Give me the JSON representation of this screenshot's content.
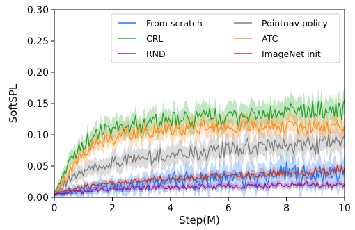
{
  "chart_data": {
    "type": "line",
    "xlabel": "Step(M)",
    "ylabel": "SoftSPL",
    "xlim": [
      0,
      10
    ],
    "ylim": [
      0,
      0.3
    ],
    "x_ticks": [
      0,
      2,
      4,
      6,
      8,
      10
    ],
    "x_tick_labels": [
      "0",
      "2",
      "4",
      "6",
      "8",
      "10"
    ],
    "y_ticks": [
      0,
      0.05,
      0.1,
      0.15,
      0.2,
      0.25,
      0.3
    ],
    "y_tick_labels": [
      "0.00",
      "0.05",
      "0.10",
      "0.15",
      "0.20",
      "0.25",
      "0.30"
    ],
    "grid": false,
    "legend_position": "top-right",
    "legend_columns": 2,
    "x": [
      0,
      0.5,
      1,
      1.5,
      2,
      2.5,
      3,
      3.5,
      4,
      4.5,
      5,
      5.5,
      6,
      6.5,
      7,
      7.5,
      8,
      8.5,
      9,
      9.5,
      10
    ],
    "series": [
      {
        "name": "From scratch",
        "color": "#1f77ff",
        "values": [
          0.005,
          0.009,
          0.012,
          0.015,
          0.018,
          0.02,
          0.022,
          0.024,
          0.026,
          0.027,
          0.028,
          0.03,
          0.031,
          0.032,
          0.034,
          0.035,
          0.036,
          0.037,
          0.038,
          0.04,
          0.045
        ],
        "band": [
          0.006,
          0.008,
          0.01,
          0.011,
          0.012,
          0.013,
          0.014,
          0.015,
          0.016,
          0.017,
          0.018,
          0.018,
          0.019,
          0.019,
          0.02,
          0.02,
          0.021,
          0.021,
          0.022,
          0.022,
          0.023
        ]
      },
      {
        "name": "Pointnav policy",
        "color": "#7f7f7f",
        "values": [
          0.005,
          0.028,
          0.04,
          0.048,
          0.055,
          0.06,
          0.062,
          0.065,
          0.068,
          0.07,
          0.072,
          0.074,
          0.076,
          0.078,
          0.08,
          0.082,
          0.083,
          0.084,
          0.085,
          0.086,
          0.088
        ],
        "band": [
          0.005,
          0.01,
          0.012,
          0.013,
          0.014,
          0.015,
          0.015,
          0.016,
          0.016,
          0.016,
          0.017,
          0.017,
          0.017,
          0.017,
          0.018,
          0.018,
          0.018,
          0.018,
          0.018,
          0.018,
          0.018
        ]
      },
      {
        "name": "CRL",
        "color": "#2ca02c",
        "values": [
          0.005,
          0.055,
          0.085,
          0.1,
          0.11,
          0.115,
          0.118,
          0.12,
          0.122,
          0.124,
          0.126,
          0.128,
          0.129,
          0.13,
          0.131,
          0.132,
          0.133,
          0.135,
          0.137,
          0.14,
          0.142
        ],
        "band": [
          0.005,
          0.012,
          0.014,
          0.015,
          0.016,
          0.016,
          0.017,
          0.017,
          0.017,
          0.018,
          0.018,
          0.018,
          0.018,
          0.019,
          0.019,
          0.019,
          0.019,
          0.02,
          0.02,
          0.02,
          0.02
        ]
      },
      {
        "name": "ATC",
        "color": "#ff8c1a",
        "values": [
          0.005,
          0.04,
          0.07,
          0.085,
          0.095,
          0.1,
          0.104,
          0.106,
          0.108,
          0.11,
          0.111,
          0.112,
          0.113,
          0.112,
          0.113,
          0.114,
          0.112,
          0.113,
          0.112,
          0.111,
          0.11
        ],
        "band": [
          0.005,
          0.01,
          0.012,
          0.013,
          0.013,
          0.014,
          0.014,
          0.014,
          0.015,
          0.015,
          0.015,
          0.015,
          0.015,
          0.015,
          0.015,
          0.015,
          0.015,
          0.015,
          0.015,
          0.015,
          0.015
        ]
      },
      {
        "name": "RND",
        "color": "#8b1a8b",
        "values": [
          0.005,
          0.008,
          0.01,
          0.012,
          0.013,
          0.014,
          0.015,
          0.016,
          0.016,
          0.017,
          0.017,
          0.018,
          0.018,
          0.018,
          0.019,
          0.019,
          0.019,
          0.02,
          0.02,
          0.02,
          0.02
        ],
        "band": [
          0.003,
          0.004,
          0.004,
          0.004,
          0.004,
          0.005,
          0.005,
          0.005,
          0.005,
          0.005,
          0.005,
          0.005,
          0.005,
          0.005,
          0.005,
          0.005,
          0.005,
          0.005,
          0.005,
          0.005,
          0.005
        ]
      },
      {
        "name": "ImageNet init",
        "color": "#b03a2e",
        "values": [
          0.005,
          0.012,
          0.016,
          0.02,
          0.022,
          0.024,
          0.026,
          0.028,
          0.03,
          0.031,
          0.032,
          0.033,
          0.034,
          0.035,
          0.036,
          0.037,
          0.038,
          0.039,
          0.04,
          0.042,
          0.045
        ],
        "band": [
          0.003,
          0.004,
          0.005,
          0.005,
          0.006,
          0.006,
          0.006,
          0.006,
          0.007,
          0.007,
          0.007,
          0.007,
          0.007,
          0.007,
          0.007,
          0.007,
          0.008,
          0.008,
          0.008,
          0.008,
          0.008
        ]
      }
    ],
    "legend_order": [
      "From scratch",
      "Pointnav policy",
      "CRL",
      "ATC",
      "RND",
      "ImageNet init"
    ]
  }
}
